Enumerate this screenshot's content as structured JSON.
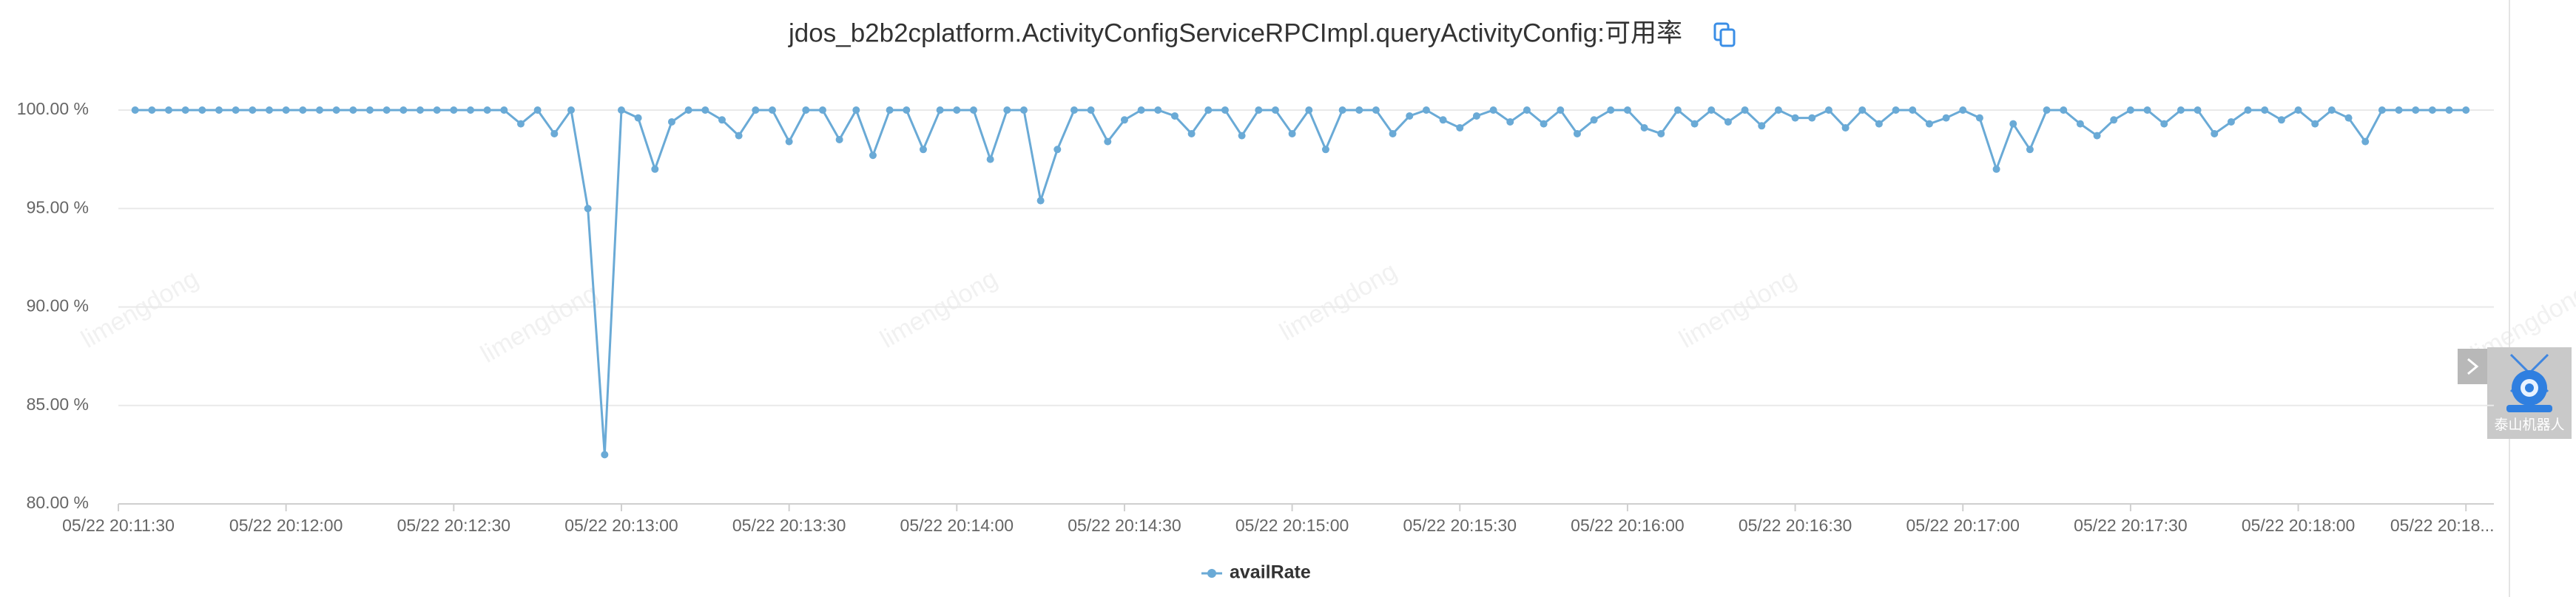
{
  "chart_data": {
    "type": "line",
    "title": "jdos_b2b2cplatform.ActivityConfigServiceRPCImpl.queryActivityConfig:可用率",
    "watermark": "limengdong",
    "robot_label": "泰山机器人",
    "x": [
      "05/22 20:11:33",
      "05/22 20:11:36",
      "05/22 20:11:39",
      "05/22 20:11:42",
      "05/22 20:11:45",
      "05/22 20:11:48",
      "05/22 20:11:51",
      "05/22 20:11:54",
      "05/22 20:11:57",
      "05/22 20:12:00",
      "05/22 20:12:03",
      "05/22 20:12:06",
      "05/22 20:12:09",
      "05/22 20:12:12",
      "05/22 20:12:15",
      "05/22 20:12:18",
      "05/22 20:12:21",
      "05/22 20:12:24",
      "05/22 20:12:27",
      "05/22 20:12:30",
      "05/22 20:12:33",
      "05/22 20:12:36",
      "05/22 20:12:39",
      "05/22 20:12:42",
      "05/22 20:12:45",
      "05/22 20:12:48",
      "05/22 20:12:51",
      "05/22 20:12:54",
      "05/22 20:12:57",
      "05/22 20:13:00",
      "05/22 20:13:03",
      "05/22 20:13:06",
      "05/22 20:13:09",
      "05/22 20:13:12",
      "05/22 20:13:15",
      "05/22 20:13:18",
      "05/22 20:13:21",
      "05/22 20:13:24",
      "05/22 20:13:27",
      "05/22 20:13:30",
      "05/22 20:13:33",
      "05/22 20:13:36",
      "05/22 20:13:39",
      "05/22 20:13:42",
      "05/22 20:13:45",
      "05/22 20:13:48",
      "05/22 20:13:51",
      "05/22 20:13:54",
      "05/22 20:13:57",
      "05/22 20:14:00",
      "05/22 20:14:03",
      "05/22 20:14:06",
      "05/22 20:14:09",
      "05/22 20:14:12",
      "05/22 20:14:15",
      "05/22 20:14:18",
      "05/22 20:14:21",
      "05/22 20:14:24",
      "05/22 20:14:27",
      "05/22 20:14:30",
      "05/22 20:14:33",
      "05/22 20:14:36",
      "05/22 20:14:39",
      "05/22 20:14:42",
      "05/22 20:14:45",
      "05/22 20:14:48",
      "05/22 20:14:51",
      "05/22 20:14:54",
      "05/22 20:14:57",
      "05/22 20:15:00",
      "05/22 20:15:03",
      "05/22 20:15:06",
      "05/22 20:15:09",
      "05/22 20:15:12",
      "05/22 20:15:15",
      "05/22 20:15:18",
      "05/22 20:15:21",
      "05/22 20:15:24",
      "05/22 20:15:27",
      "05/22 20:15:30",
      "05/22 20:15:33",
      "05/22 20:15:36",
      "05/22 20:15:39",
      "05/22 20:15:42",
      "05/22 20:15:45",
      "05/22 20:15:48",
      "05/22 20:15:51",
      "05/22 20:15:54",
      "05/22 20:15:57",
      "05/22 20:16:00",
      "05/22 20:16:03",
      "05/22 20:16:06",
      "05/22 20:16:09",
      "05/22 20:16:12",
      "05/22 20:16:15",
      "05/22 20:16:18",
      "05/22 20:16:21",
      "05/22 20:16:24",
      "05/22 20:16:27",
      "05/22 20:16:30",
      "05/22 20:16:33",
      "05/22 20:16:36",
      "05/22 20:16:39",
      "05/22 20:16:42",
      "05/22 20:16:45",
      "05/22 20:16:48",
      "05/22 20:16:51",
      "05/22 20:16:54",
      "05/22 20:16:57",
      "05/22 20:17:00",
      "05/22 20:17:03",
      "05/22 20:17:06",
      "05/22 20:17:09",
      "05/22 20:17:12",
      "05/22 20:17:15",
      "05/22 20:17:18",
      "05/22 20:17:21",
      "05/22 20:17:24",
      "05/22 20:17:27",
      "05/22 20:17:30",
      "05/22 20:17:33",
      "05/22 20:17:36",
      "05/22 20:17:39",
      "05/22 20:17:42",
      "05/22 20:17:45",
      "05/22 20:17:48",
      "05/22 20:17:51",
      "05/22 20:17:54",
      "05/22 20:17:57",
      "05/22 20:18:00",
      "05/22 20:18:03",
      "05/22 20:18:06",
      "05/22 20:18:09",
      "05/22 20:18:12",
      "05/22 20:18:15",
      "05/22 20:18:18",
      "05/22 20:18:21",
      "05/22 20:18:24",
      "05/22 20:18:27",
      "05/22 20:18:30"
    ],
    "series": [
      {
        "name": "availRate",
        "color": "#6aaad6",
        "values": [
          100,
          100,
          100,
          100,
          100,
          100,
          100,
          100,
          100,
          100,
          100,
          100,
          100,
          100,
          100,
          100,
          100,
          100,
          100,
          100,
          100,
          100,
          100,
          99.3,
          100,
          98.8,
          100,
          95,
          82.5,
          100,
          99.6,
          97,
          99.4,
          100,
          100,
          99.5,
          98.7,
          100,
          100,
          98.4,
          100,
          100,
          98.5,
          100,
          97.7,
          100,
          100,
          98,
          100,
          100,
          100,
          97.5,
          100,
          100,
          95.4,
          98,
          100,
          100,
          98.4,
          99.5,
          100,
          100,
          99.7,
          98.8,
          100,
          100,
          98.7,
          100,
          100,
          98.8,
          100,
          98,
          100,
          100,
          100,
          98.8,
          99.7,
          100,
          99.5,
          99.1,
          99.7,
          100,
          99.4,
          100,
          99.3,
          100,
          98.8,
          99.5,
          100,
          100,
          99.1,
          98.8,
          100,
          99.3,
          100,
          99.4,
          100,
          99.2,
          100,
          99.6,
          99.6,
          100,
          99.1,
          100,
          99.3,
          100,
          100,
          99.3,
          99.6,
          100,
          99.6,
          97,
          99.3,
          98,
          100,
          100,
          99.3,
          98.7,
          99.5,
          100,
          100,
          99.3,
          100,
          100,
          98.8,
          99.4,
          100,
          100,
          99.5,
          100,
          99.3,
          100,
          99.6,
          98.4,
          100,
          100,
          100,
          100,
          100,
          100
        ]
      }
    ],
    "xlim": [
      "05/22 20:11:30",
      "05/22 20:18:35"
    ],
    "xticks": [
      "05/22 20:11:30",
      "05/22 20:12:00",
      "05/22 20:12:30",
      "05/22 20:13:00",
      "05/22 20:13:30",
      "05/22 20:14:00",
      "05/22 20:14:30",
      "05/22 20:15:00",
      "05/22 20:15:30",
      "05/22 20:16:00",
      "05/22 20:16:30",
      "05/22 20:17:00",
      "05/22 20:17:30",
      "05/22 20:18:00",
      {
        "value": "05/22 20:18:30",
        "label": "05/22 20:18..."
      }
    ],
    "ylim": [
      80,
      101.5
    ],
    "yticks": [
      {
        "value": 80,
        "label": "80.00 %"
      },
      {
        "value": 85,
        "label": "85.00 %"
      },
      {
        "value": 90,
        "label": "90.00 %"
      },
      {
        "value": 95,
        "label": "95.00 %"
      },
      {
        "value": 100,
        "label": "100.00 %"
      }
    ],
    "grid": true,
    "legend": "bottom"
  }
}
